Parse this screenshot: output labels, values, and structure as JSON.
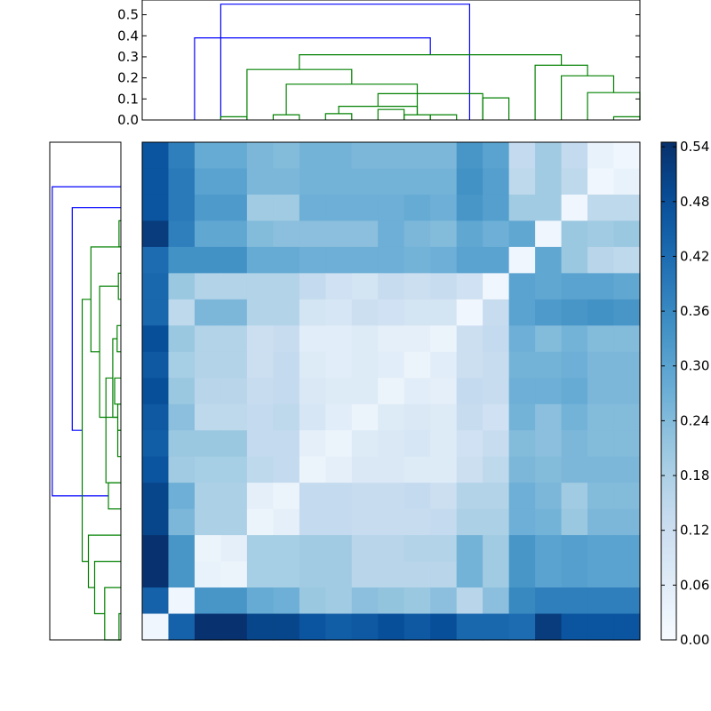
{
  "chart_data": {
    "type": "heatmap",
    "title": "",
    "colormap": "Blues",
    "colorbar": {
      "vmin": 0.0,
      "vmax": 0.545,
      "tick_labels": [
        "0.00",
        "0.06",
        "0.12",
        "0.18",
        "0.24",
        "0.30",
        "0.36",
        "0.42",
        "0.48",
        "0.54"
      ]
    },
    "heatmap_values": [
      [
        0.47,
        0.38,
        0.28,
        0.28,
        0.25,
        0.24,
        0.26,
        0.26,
        0.25,
        0.25,
        0.25,
        0.25,
        0.33,
        0.3,
        0.14,
        0.2,
        0.14,
        0.04,
        0.02
      ],
      [
        0.47,
        0.39,
        0.3,
        0.3,
        0.25,
        0.25,
        0.26,
        0.26,
        0.26,
        0.26,
        0.26,
        0.26,
        0.34,
        0.31,
        0.15,
        0.2,
        0.15,
        0.02,
        0.04
      ],
      [
        0.47,
        0.39,
        0.32,
        0.32,
        0.2,
        0.2,
        0.27,
        0.27,
        0.27,
        0.27,
        0.28,
        0.27,
        0.33,
        0.31,
        0.2,
        0.2,
        0.02,
        0.15,
        0.15
      ],
      [
        0.52,
        0.38,
        0.29,
        0.29,
        0.24,
        0.23,
        0.23,
        0.23,
        0.23,
        0.27,
        0.25,
        0.24,
        0.29,
        0.27,
        0.29,
        0.02,
        0.21,
        0.2,
        0.21
      ],
      [
        0.42,
        0.34,
        0.34,
        0.34,
        0.28,
        0.28,
        0.27,
        0.27,
        0.27,
        0.27,
        0.26,
        0.27,
        0.3,
        0.3,
        0.02,
        0.29,
        0.21,
        0.16,
        0.15
      ],
      [
        0.43,
        0.21,
        0.17,
        0.17,
        0.17,
        0.17,
        0.14,
        0.11,
        0.1,
        0.13,
        0.12,
        0.13,
        0.11,
        0.02,
        0.3,
        0.29,
        0.3,
        0.3,
        0.29
      ],
      [
        0.43,
        0.15,
        0.25,
        0.25,
        0.17,
        0.17,
        0.1,
        0.09,
        0.12,
        0.11,
        0.1,
        0.1,
        0.02,
        0.13,
        0.3,
        0.32,
        0.33,
        0.34,
        0.33
      ],
      [
        0.48,
        0.21,
        0.17,
        0.17,
        0.12,
        0.13,
        0.06,
        0.06,
        0.07,
        0.05,
        0.05,
        0.03,
        0.12,
        0.14,
        0.27,
        0.24,
        0.26,
        0.24,
        0.24
      ],
      [
        0.46,
        0.19,
        0.17,
        0.17,
        0.12,
        0.14,
        0.07,
        0.06,
        0.07,
        0.06,
        0.03,
        0.06,
        0.12,
        0.13,
        0.26,
        0.26,
        0.27,
        0.25,
        0.25
      ],
      [
        0.48,
        0.21,
        0.16,
        0.16,
        0.13,
        0.14,
        0.08,
        0.07,
        0.07,
        0.03,
        0.06,
        0.05,
        0.14,
        0.13,
        0.27,
        0.27,
        0.28,
        0.25,
        0.25
      ],
      [
        0.46,
        0.23,
        0.15,
        0.15,
        0.14,
        0.15,
        0.09,
        0.06,
        0.03,
        0.07,
        0.08,
        0.07,
        0.13,
        0.11,
        0.26,
        0.23,
        0.26,
        0.24,
        0.24
      ],
      [
        0.45,
        0.21,
        0.21,
        0.21,
        0.14,
        0.14,
        0.05,
        0.03,
        0.07,
        0.08,
        0.09,
        0.07,
        0.11,
        0.13,
        0.24,
        0.23,
        0.25,
        0.24,
        0.24
      ],
      [
        0.47,
        0.2,
        0.19,
        0.19,
        0.15,
        0.14,
        0.03,
        0.05,
        0.08,
        0.08,
        0.07,
        0.07,
        0.12,
        0.15,
        0.25,
        0.24,
        0.25,
        0.25,
        0.25
      ],
      [
        0.5,
        0.27,
        0.18,
        0.18,
        0.05,
        0.03,
        0.14,
        0.14,
        0.13,
        0.13,
        0.14,
        0.12,
        0.17,
        0.17,
        0.27,
        0.25,
        0.2,
        0.24,
        0.24
      ],
      [
        0.5,
        0.25,
        0.18,
        0.18,
        0.03,
        0.05,
        0.14,
        0.14,
        0.13,
        0.13,
        0.13,
        0.14,
        0.18,
        0.18,
        0.27,
        0.26,
        0.21,
        0.25,
        0.25
      ],
      [
        0.54,
        0.33,
        0.03,
        0.05,
        0.19,
        0.19,
        0.2,
        0.2,
        0.16,
        0.16,
        0.17,
        0.17,
        0.26,
        0.2,
        0.33,
        0.3,
        0.31,
        0.3,
        0.3
      ],
      [
        0.54,
        0.33,
        0.04,
        0.03,
        0.19,
        0.19,
        0.2,
        0.2,
        0.16,
        0.16,
        0.16,
        0.16,
        0.26,
        0.2,
        0.33,
        0.3,
        0.31,
        0.3,
        0.3
      ],
      [
        0.44,
        0.02,
        0.33,
        0.33,
        0.28,
        0.27,
        0.21,
        0.2,
        0.23,
        0.22,
        0.21,
        0.23,
        0.16,
        0.23,
        0.36,
        0.38,
        0.38,
        0.38,
        0.38
      ],
      [
        0.02,
        0.44,
        0.54,
        0.54,
        0.5,
        0.5,
        0.47,
        0.45,
        0.46,
        0.48,
        0.46,
        0.48,
        0.43,
        0.43,
        0.42,
        0.52,
        0.47,
        0.47,
        0.47
      ]
    ],
    "top_dendrogram": {
      "n_leaves": 19,
      "ylim": [
        0,
        0.57
      ],
      "ytick_labels": [
        "0.0",
        "0.1",
        "0.2",
        "0.3",
        "0.4",
        "0.5"
      ],
      "links": [
        {
          "left": 2.5,
          "right": 12.0,
          "height": 0.55,
          "color": "#0000ff"
        },
        {
          "left": 1.5,
          "right": 10.5,
          "height": 0.39,
          "color": "#0000ff"
        },
        {
          "left": 5.5,
          "right": 15.5,
          "height": 0.31,
          "color": "#008000"
        },
        {
          "left": 3.5,
          "right": 7.5,
          "height": 0.24,
          "color": "#008000"
        },
        {
          "left": 5.0,
          "right": 10.0,
          "height": 0.17,
          "color": "#008000"
        },
        {
          "left": 8.5,
          "right": 12.5,
          "height": 0.125,
          "color": "#008000"
        },
        {
          "left": 7.0,
          "right": 10.0,
          "height": 0.065,
          "color": "#008000"
        },
        {
          "left": 9.5,
          "right": 10.5,
          "height": 0.025,
          "color": "#008000"
        },
        {
          "left": 12.5,
          "right": 13.5,
          "height": 0.105,
          "color": "#008000"
        },
        {
          "left": 14.5,
          "right": 16.5,
          "height": 0.26,
          "color": "#008000"
        },
        {
          "left": 15.5,
          "right": 17.5,
          "height": 0.21,
          "color": "#008000"
        },
        {
          "left": 16.5,
          "right": 18.5,
          "height": 0.13,
          "color": "#008000"
        },
        {
          "left": 2.5,
          "right": 3.5,
          "height": 0.015,
          "color": "#008000"
        },
        {
          "left": 4.5,
          "right": 5.5,
          "height": 0.025,
          "color": "#008000"
        },
        {
          "left": 6.5,
          "right": 7.5,
          "height": 0.03,
          "color": "#008000"
        },
        {
          "left": 8.5,
          "right": 9.5,
          "height": 0.05,
          "color": "#008000"
        },
        {
          "left": 10.5,
          "right": 11.5,
          "height": 0.025,
          "color": "#008000"
        },
        {
          "left": 17.5,
          "right": 18.5,
          "height": 0.015,
          "color": "#008000"
        }
      ]
    },
    "left_dendrogram": {
      "n_leaves": 19,
      "links": [
        {
          "a": 1.2,
          "b": 13.0,
          "dist": 0.55,
          "color": "#0000ff"
        },
        {
          "a": 2.0,
          "b": 10.5,
          "dist": 0.39,
          "color": "#0000ff"
        },
        {
          "a": 5.5,
          "b": 15.5,
          "dist": 0.31,
          "color": "#008000"
        },
        {
          "a": 3.5,
          "b": 7.5,
          "dist": 0.24,
          "color": "#008000"
        },
        {
          "a": 5.0,
          "b": 10.0,
          "dist": 0.17,
          "color": "#008000"
        },
        {
          "a": 8.5,
          "b": 12.5,
          "dist": 0.12,
          "color": "#008000"
        },
        {
          "a": 7.0,
          "b": 10.0,
          "dist": 0.065,
          "color": "#008000"
        },
        {
          "a": 9.5,
          "b": 10.5,
          "dist": 0.025,
          "color": "#008000"
        },
        {
          "a": 12.5,
          "b": 13.5,
          "dist": 0.1,
          "color": "#008000"
        },
        {
          "a": 14.5,
          "b": 16.5,
          "dist": 0.26,
          "color": "#008000"
        },
        {
          "a": 15.5,
          "b": 17.5,
          "dist": 0.21,
          "color": "#008000"
        },
        {
          "a": 16.5,
          "b": 18.5,
          "dist": 0.13,
          "color": "#008000"
        },
        {
          "a": 2.5,
          "b": 3.5,
          "dist": 0.015,
          "color": "#008000"
        },
        {
          "a": 4.5,
          "b": 5.5,
          "dist": 0.02,
          "color": "#008000"
        },
        {
          "a": 6.5,
          "b": 7.5,
          "dist": 0.03,
          "color": "#008000"
        },
        {
          "a": 8.5,
          "b": 9.5,
          "dist": 0.05,
          "color": "#008000"
        },
        {
          "a": 10.5,
          "b": 11.5,
          "dist": 0.025,
          "color": "#008000"
        },
        {
          "a": 17.5,
          "b": 18.5,
          "dist": 0.015,
          "color": "#008000"
        }
      ]
    },
    "colors": {
      "cluster_blue": "#0000ff",
      "cluster_green": "#008000"
    }
  }
}
